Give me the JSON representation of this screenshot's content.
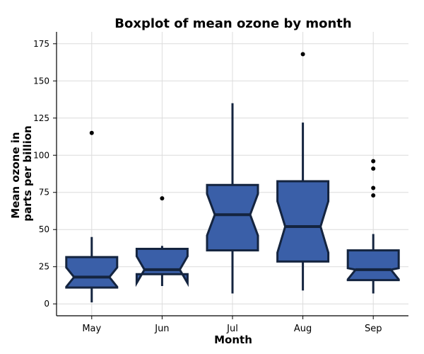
{
  "chart_data": {
    "type": "boxplot",
    "title": "Boxplot of mean ozone by month",
    "xlabel": "Month",
    "ylabel_lines": [
      "Mean ozone in",
      "parts per billion"
    ],
    "ylim": [
      -8,
      183
    ],
    "yticks": [
      0,
      25,
      50,
      75,
      100,
      125,
      150,
      175
    ],
    "grid": true,
    "notched": true,
    "box_color": "#3a5fa8",
    "edge_color": "#14243f",
    "categories": [
      "May",
      "Jun",
      "Jul",
      "Aug",
      "Sep"
    ],
    "boxes": [
      {
        "label": "May",
        "whisker_low": 1,
        "q1": 11,
        "median": 18,
        "q3": 31.5,
        "whisker_high": 45,
        "notch_low": 11.5,
        "notch_high": 24.5,
        "outliers": [
          115
        ]
      },
      {
        "label": "Jun",
        "whisker_low": 12,
        "q1": 20,
        "median": 23,
        "q3": 37,
        "whisker_high": 39,
        "notch_low": 14,
        "notch_high": 32,
        "outliers": [
          71
        ]
      },
      {
        "label": "Jul",
        "whisker_low": 7,
        "q1": 36,
        "median": 60,
        "q3": 80,
        "whisker_high": 135,
        "notch_low": 46,
        "notch_high": 74,
        "outliers": []
      },
      {
        "label": "Aug",
        "whisker_low": 9,
        "q1": 28.5,
        "median": 52,
        "q3": 82.5,
        "whisker_high": 122,
        "notch_low": 34.5,
        "notch_high": 69,
        "outliers": [
          168
        ]
      },
      {
        "label": "Sep",
        "whisker_low": 7,
        "q1": 16,
        "median": 23,
        "q3": 36,
        "whisker_high": 47,
        "notch_low": 16.5,
        "notch_high": 24,
        "outliers": [
          73,
          78,
          91,
          96
        ]
      }
    ]
  }
}
